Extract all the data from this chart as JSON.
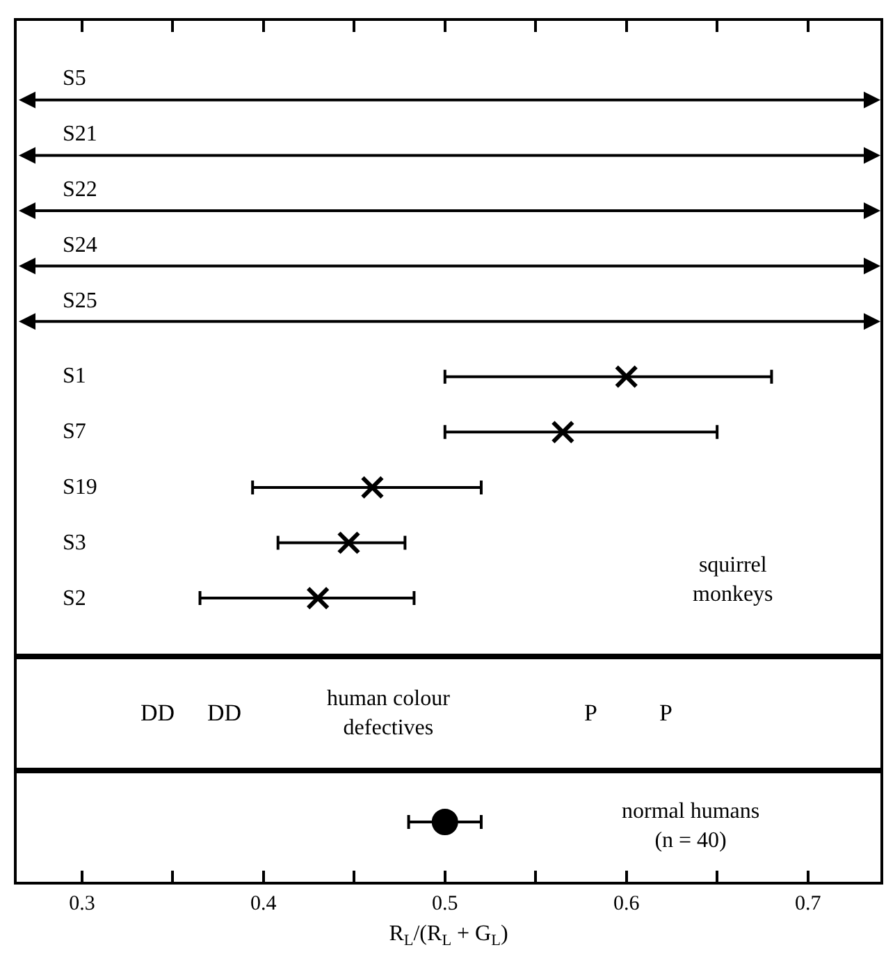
{
  "chart_data": [
    {
      "type": "scatter",
      "orientation": "horizontal",
      "categories": [
        "S5",
        "S21",
        "S22",
        "S24",
        "S25",
        "S1",
        "S7",
        "S19",
        "S3",
        "S2"
      ],
      "series": [
        {
          "color": "#000000",
          "values": [
            null,
            null,
            null,
            null,
            null,
            0.6,
            0.565,
            0.46,
            0.447,
            0.43
          ],
          "errors": [
            null,
            null,
            null,
            null,
            null,
            [
              0.5,
              0.68
            ],
            [
              0.5,
              0.65
            ],
            [
              0.394,
              0.52
            ],
            [
              0.408,
              0.478
            ],
            [
              0.365,
              0.483
            ]
          ]
        }
      ],
      "marker": "cross",
      "xlim": [
        0.264,
        0.74
      ],
      "xticks": [
        0.3,
        {
          "value": 0.35,
          "label": null
        },
        0.4,
        {
          "value": 0.45,
          "label": null
        },
        0.5,
        {
          "value": 0.55,
          "label": null
        },
        0.6,
        {
          "value": 0.65,
          "label": null
        },
        0.7
      ],
      "tick_labels": false,
      "grid": false,
      "annotations": [
        "squirrel\nmonkeys"
      ]
    },
    {
      "type": "other",
      "annotations": [
        "human colour\ndefectives",
        "DD",
        "DD",
        "P",
        "P"
      ]
    },
    {
      "type": "scatter",
      "orientation": "horizontal",
      "categories": [
        null
      ],
      "series": [
        {
          "color": "#000000",
          "values": [
            0.5
          ],
          "errors": [
            [
              0.48,
              0.52
            ]
          ]
        }
      ],
      "marker": "circle",
      "xlim": [
        0.264,
        0.74
      ],
      "xticks": [
        0.3,
        {
          "value": 0.35,
          "label": null
        },
        0.4,
        {
          "value": 0.45,
          "label": null
        },
        0.5,
        {
          "value": 0.55,
          "label": null
        },
        0.6,
        {
          "value": 0.65,
          "label": null
        },
        0.7
      ],
      "xlabel": "R$_{L}$/(R$_{L}$ + G$_{L}$)",
      "tick_labels": "x",
      "grid": false,
      "annotations": [
        "normal humans\n(n = 40)"
      ]
    }
  ]
}
